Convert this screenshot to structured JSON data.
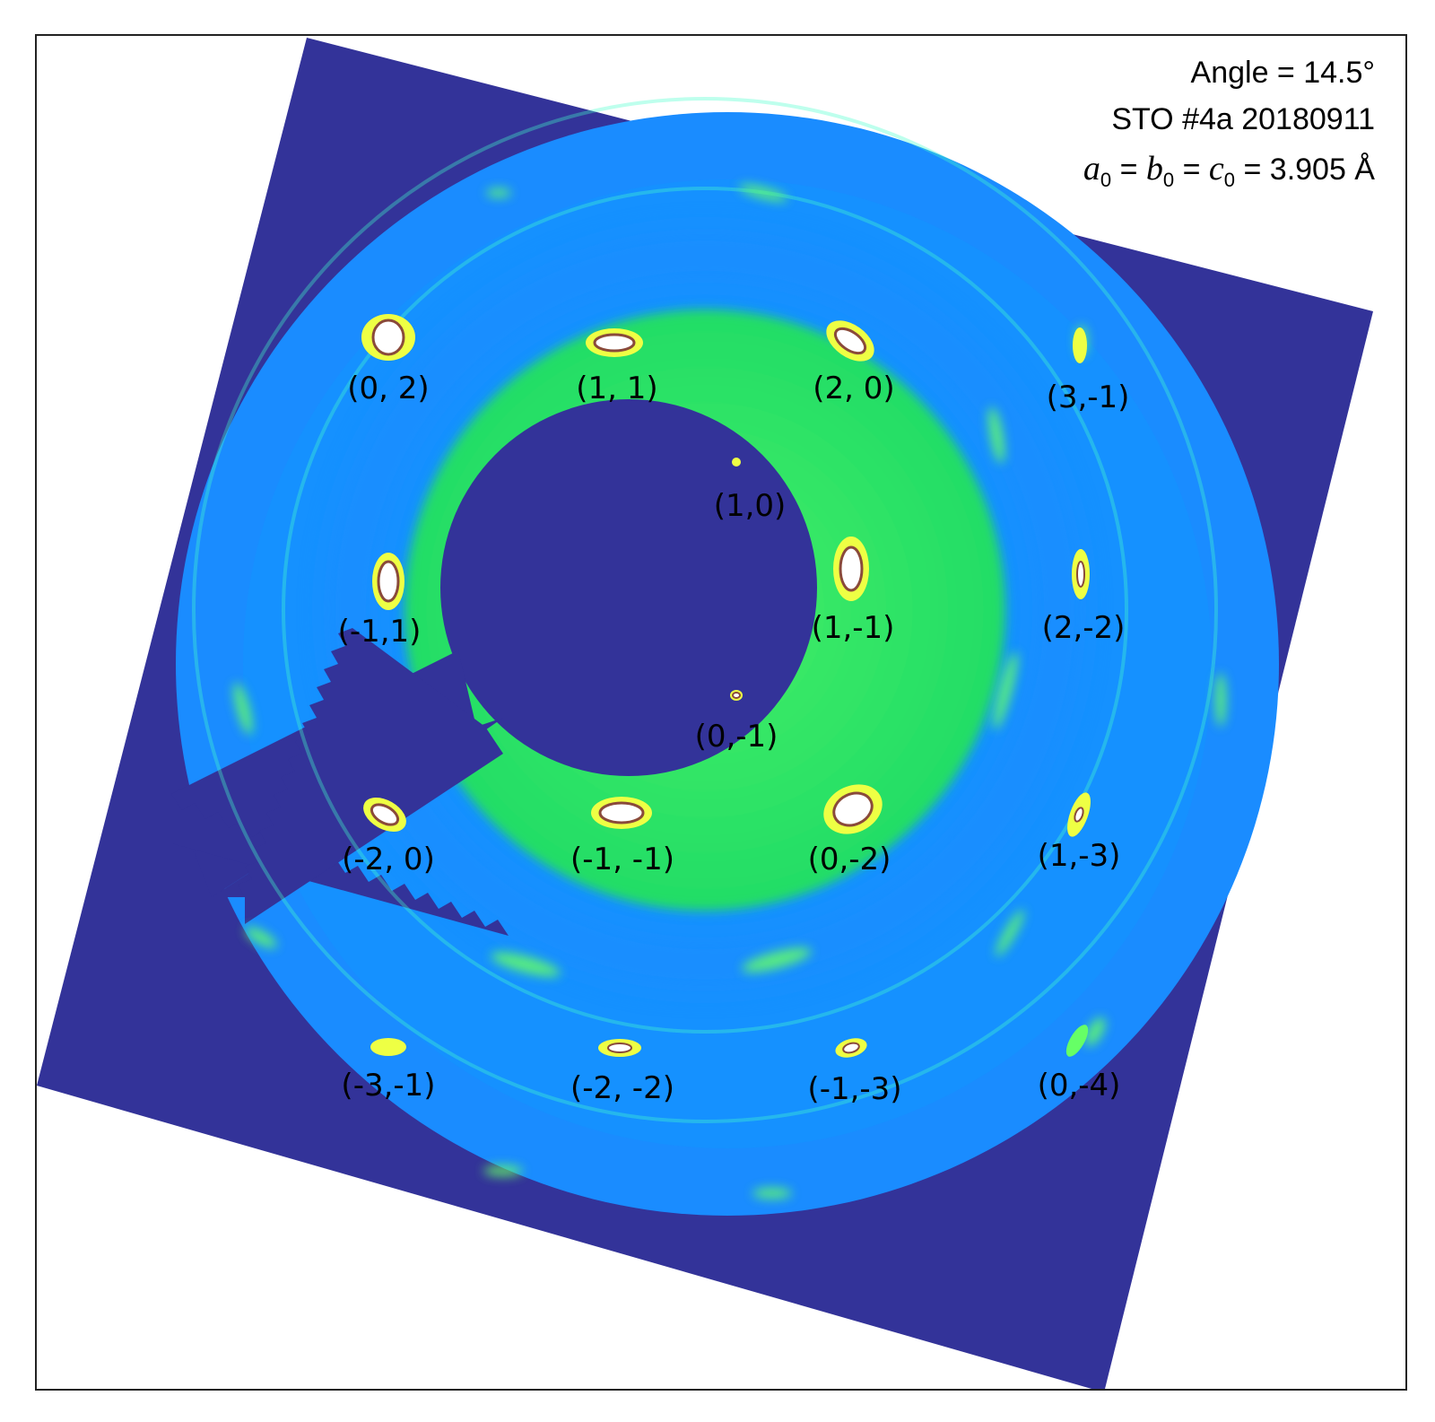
{
  "annotations": {
    "angle": "Angle = 14.5°",
    "sample": "STO #4a 20180911",
    "lattice_a": "a",
    "lattice_b": "b",
    "lattice_c": "c",
    "lattice_sub": "0",
    "lattice_value": "3.905 Å"
  },
  "colors": {
    "background_dark": "#333399",
    "ring_blue": "#1a8cff",
    "ring_green": "#22dd66",
    "spot_yellow": "#eeff44",
    "spot_core": "#ffffff",
    "spot_edge": "#8a4a3a"
  },
  "spots": [
    {
      "label": "(0, 2)"
    },
    {
      "label": "(1, 1)"
    },
    {
      "label": "(2, 0)"
    },
    {
      "label": "(3,-1)"
    },
    {
      "label": "(1,0)"
    },
    {
      "label": "(-1,1)"
    },
    {
      "label": "(1,-1)"
    },
    {
      "label": "(2,-2)"
    },
    {
      "label": "(0,-1)"
    },
    {
      "label": "(-2, 0)"
    },
    {
      "label": "(-1, -1)"
    },
    {
      "label": "(0,-2)"
    },
    {
      "label": "(1,-3)"
    },
    {
      "label": "(-3,-1)"
    },
    {
      "label": "(-2, -2)"
    },
    {
      "label": "(-1,-3)"
    },
    {
      "label": "(0,-4)"
    }
  ]
}
